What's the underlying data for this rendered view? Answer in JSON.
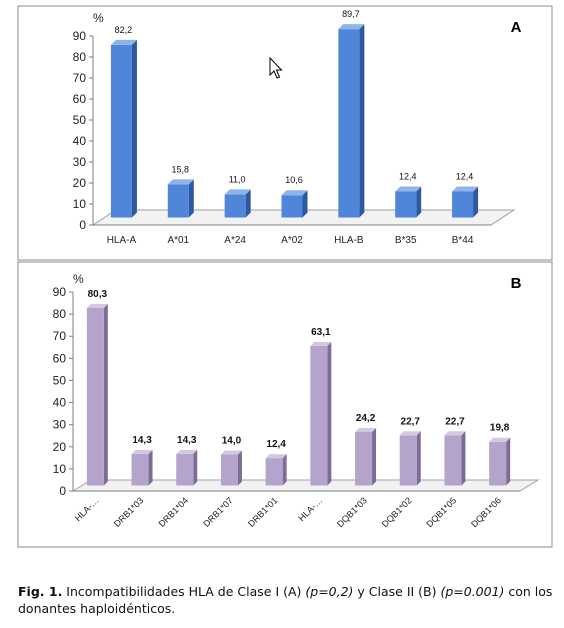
{
  "chart_data": [
    {
      "type": "bar",
      "panel_label": "A",
      "unit": "%",
      "ylim": [
        0,
        90
      ],
      "yticks": [
        0,
        10,
        20,
        30,
        40,
        50,
        60,
        70,
        80,
        90
      ],
      "categories": [
        "HLA-A",
        "A*01",
        "A*24",
        "A*02",
        "HLA-B",
        "B*35",
        "B*44"
      ],
      "values": [
        82.2,
        15.8,
        11.0,
        10.6,
        89.7,
        12.4,
        12.4
      ],
      "value_labels": [
        "82,2",
        "15,8",
        "11,0",
        "10,6",
        "89,7",
        "12,4",
        "12,4"
      ],
      "bar_color": "#4f86d9",
      "grid": false
    },
    {
      "type": "bar",
      "panel_label": "B",
      "unit": "%",
      "ylim": [
        0,
        90
      ],
      "yticks": [
        0,
        10,
        20,
        30,
        40,
        50,
        60,
        70,
        80,
        90
      ],
      "categories": [
        "HLA-…",
        "DRB1*03",
        "DRB1*04",
        "DRB1*07",
        "DRB1*01",
        "HLA-…",
        "DQB1*03",
        "DQB1*02",
        "DQB1*05",
        "DQB1*06"
      ],
      "values": [
        80.3,
        14.3,
        14.3,
        14.0,
        12.4,
        63.1,
        24.2,
        22.7,
        22.7,
        19.8
      ],
      "value_labels": [
        "80,3",
        "14,3",
        "14,3",
        "14,0",
        "12,4",
        "63,1",
        "24,2",
        "22,7",
        "22,7",
        "19,8"
      ],
      "bar_color": "#b4a4cc",
      "grid": false
    }
  ],
  "caption": {
    "fig_label": "Fig. 1.",
    "text_1": " Incompatibilidades HLA de Clase I (A) ",
    "p1": "(p=0,2)",
    "text_2": " y Clase II (B) ",
    "p2": "(p=0.001)",
    "text_3": " con los donantes haploidénticos."
  },
  "colors": {
    "blue_front": "#4f86d9",
    "blue_side": "#2d5a9e",
    "blue_top": "#8fb4ea",
    "purple_front": "#b4a4cc",
    "purple_side": "#7e6c98",
    "purple_top": "#d3c8e2"
  }
}
